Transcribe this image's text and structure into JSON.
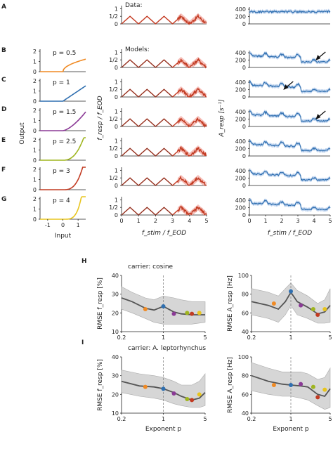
{
  "panel_letters": [
    "A",
    "B",
    "C",
    "D",
    "E",
    "F",
    "G",
    "H",
    "I"
  ],
  "labels": {
    "data": "Data:",
    "models": "Models:",
    "output": "Output",
    "input": "Input",
    "fresp_ylabel": "f_resp / f_EOD",
    "aresp_ylabel": "A_resp [s⁻¹]",
    "fstim_xlabel": "f_stim / f_EOD",
    "exponent_xlabel": "Exponent p",
    "rmse_f": "RMSE f_resp [%]",
    "rmse_a": "RMSE A_resp [Hz]",
    "carrier_h": "carrier: cosine",
    "carrier_i": "carrier: A. leptorhynchus"
  },
  "colors": {
    "data": "#c23b22",
    "model_blue": "#2f6fb0",
    "band_red": "#f2a29a",
    "band_blue": "#a9c4e8",
    "rmse_line": "#555555",
    "rmse_band": "#d6d6d6",
    "dots": [
      "#f08a24",
      "#2f6fb0",
      "#8b3a96",
      "#9fb51f",
      "#c23b22",
      "#e8c51e"
    ]
  },
  "chart_data": [
    {
      "type": "line",
      "panels": "B-G left column (nonlinearity)",
      "xlabel": "Input",
      "ylabel": "Output",
      "xticks": [
        -1,
        0,
        1
      ],
      "yticks": [
        0,
        1,
        2
      ],
      "exponents": [
        {
          "p_label": "p = 0.5",
          "p": 0.5,
          "color": "#f08a24"
        },
        {
          "p_label": "p = 1",
          "p": 1,
          "color": "#2f6fb0"
        },
        {
          "p_label": "p = 1.5",
          "p": 1.5,
          "color": "#8b3a96"
        },
        {
          "p_label": "p = 2.5",
          "p": 2.5,
          "color": "#9fb51f"
        },
        {
          "p_label": "p = 3",
          "p": 3,
          "color": "#c23b22"
        },
        {
          "p_label": "p = 4",
          "p": 4,
          "color": "#e8c51e"
        }
      ]
    },
    {
      "type": "line",
      "panels": "A-G middle column (response frequency)",
      "xlabel": "f_stim / f_EOD",
      "ylabel": "f_resp / f_EOD",
      "xticks": [
        0,
        1,
        2,
        3,
        4,
        5
      ],
      "yticks": [
        "0",
        "1/2",
        "1"
      ],
      "xlim": [
        0,
        5
      ],
      "ylim": [
        0,
        1
      ],
      "series": [
        {
          "name": "expected",
          "x": [
            0,
            0.5,
            1,
            1.5,
            2,
            2.5,
            3,
            3.5,
            4,
            4.5,
            5
          ],
          "y": [
            0,
            0.5,
            0,
            0.5,
            0,
            0.5,
            0,
            0.5,
            0,
            0.5,
            0
          ]
        }
      ]
    },
    {
      "type": "line",
      "panels": "A-G right column (response amplitude)",
      "xlabel": "f_stim / f_EOD",
      "ylabel": "A_resp [s⁻¹]",
      "xticks": [
        0,
        1,
        2,
        3,
        4,
        5
      ],
      "yticks": [
        0,
        200,
        400
      ],
      "xlim": [
        0,
        5
      ],
      "ylim": [
        0,
        400
      ]
    },
    {
      "type": "line",
      "panel": "H left",
      "title": "carrier: cosine",
      "xlabel": "",
      "ylabel": "RMSE f_resp [%]",
      "xscale": "log",
      "xticks": [
        0.2,
        1,
        5
      ],
      "yticks": [
        10,
        20,
        30,
        40
      ],
      "ylim": [
        10,
        40
      ],
      "x": [
        0.2,
        0.3,
        0.5,
        0.7,
        1,
        1.5,
        2,
        3,
        5
      ],
      "y": [
        28,
        26,
        22.5,
        21.5,
        23.5,
        20.5,
        19.5,
        19,
        19
      ],
      "band_low": [
        22,
        20,
        17,
        15,
        14,
        14,
        14,
        14,
        15
      ],
      "band_high": [
        34,
        31,
        28,
        27,
        29,
        28,
        27,
        26,
        26
      ],
      "dots": [
        {
          "x": 0.5,
          "y": 22
        },
        {
          "x": 1,
          "y": 23.5
        },
        {
          "x": 1.5,
          "y": 19.5
        },
        {
          "x": 2.5,
          "y": 20
        },
        {
          "x": 3,
          "y": 19.5
        },
        {
          "x": 4,
          "y": 20
        }
      ]
    },
    {
      "type": "line",
      "panel": "H right",
      "xlabel": "",
      "ylabel": "RMSE A_resp [Hz]",
      "xscale": "log",
      "xticks": [
        0.2,
        1,
        5
      ],
      "yticks": [
        40,
        60,
        80,
        100
      ],
      "ylim": [
        40,
        100
      ],
      "x": [
        0.2,
        0.4,
        0.6,
        0.8,
        1,
        1.3,
        2,
        3,
        4,
        5
      ],
      "y": [
        72,
        68,
        64,
        72,
        82,
        72,
        66,
        59,
        61,
        68
      ],
      "band_low": [
        58,
        54,
        50,
        58,
        68,
        58,
        54,
        49,
        49,
        50
      ],
      "band_high": [
        86,
        82,
        78,
        86,
        92,
        84,
        78,
        70,
        74,
        86
      ],
      "dots": [
        {
          "x": 0.5,
          "y": 70
        },
        {
          "x": 1,
          "y": 83
        },
        {
          "x": 1.5,
          "y": 68
        },
        {
          "x": 2.5,
          "y": 64
        },
        {
          "x": 3,
          "y": 58
        },
        {
          "x": 4,
          "y": 64
        }
      ]
    },
    {
      "type": "line",
      "panel": "I left",
      "title": "carrier: A. leptorhynchus",
      "xlabel": "Exponent p",
      "ylabel": "RMSE f_resp [%]",
      "xscale": "log",
      "xticks": [
        0.2,
        1,
        5
      ],
      "yticks": [
        10,
        20,
        30,
        40
      ],
      "ylim": [
        10,
        40
      ],
      "x": [
        0.2,
        0.4,
        0.7,
        1,
        1.5,
        2,
        3,
        4,
        5
      ],
      "y": [
        27,
        24.5,
        24,
        23,
        21,
        19,
        17,
        18,
        21
      ],
      "band_low": [
        21,
        19,
        18,
        17,
        15,
        14,
        13,
        13,
        14
      ],
      "band_high": [
        33,
        31,
        30,
        29,
        27,
        25,
        25,
        27,
        31
      ],
      "dots": [
        {
          "x": 0.5,
          "y": 24
        },
        {
          "x": 1,
          "y": 23
        },
        {
          "x": 1.5,
          "y": 20.5
        },
        {
          "x": 2.5,
          "y": 17.5
        },
        {
          "x": 3,
          "y": 17
        },
        {
          "x": 4,
          "y": 20
        }
      ]
    },
    {
      "type": "line",
      "panel": "I right",
      "xlabel": "Exponent p",
      "ylabel": "RMSE A_resp [Hz]",
      "xscale": "log",
      "xticks": [
        0.2,
        1,
        5
      ],
      "yticks": [
        40,
        60,
        80,
        100
      ],
      "ylim": [
        40,
        100
      ],
      "x": [
        0.2,
        0.4,
        0.7,
        1,
        1.5,
        2,
        3,
        4,
        5
      ],
      "y": [
        80,
        74,
        71,
        70,
        69,
        68,
        60,
        58,
        66
      ],
      "band_low": [
        64,
        60,
        58,
        58,
        56,
        54,
        48,
        44,
        46
      ],
      "band_high": [
        94,
        88,
        84,
        84,
        84,
        82,
        76,
        78,
        88
      ],
      "dots": [
        {
          "x": 0.5,
          "y": 70
        },
        {
          "x": 1,
          "y": 70
        },
        {
          "x": 1.5,
          "y": 71
        },
        {
          "x": 2.5,
          "y": 68
        },
        {
          "x": 3,
          "y": 57
        },
        {
          "x": 4,
          "y": 65
        }
      ]
    }
  ]
}
